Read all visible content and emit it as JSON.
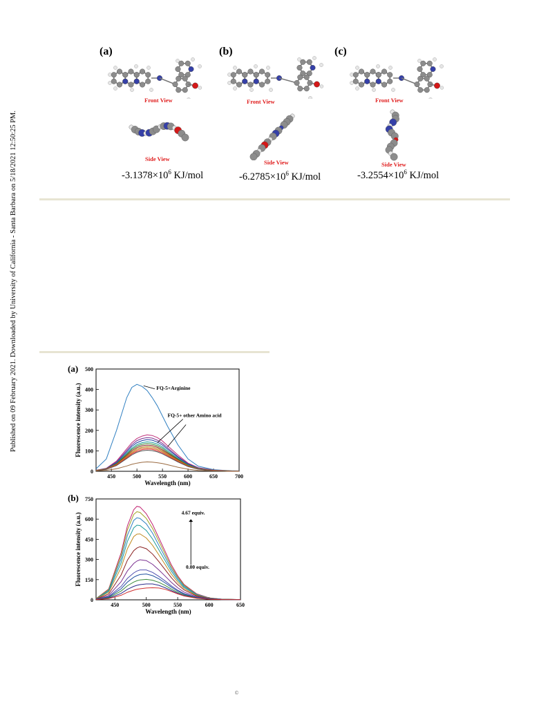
{
  "side_note": "Published on 09 February 2021. Downloaded by University of California - Santa Barbara on 5/18/2021 12:50:25 PM.",
  "figure_top": {
    "panels": [
      {
        "label": "(a)",
        "front": "Front View",
        "side": "Side View",
        "energy_prefix": "-3.1378×10",
        "energy_exp": "6",
        "energy_unit": " KJ/mol"
      },
      {
        "label": "(b)",
        "front": "Front View",
        "side": "Side View",
        "energy_prefix": "-6.2785×10",
        "energy_exp": "6",
        "energy_unit": " KJ/mol"
      },
      {
        "label": "(c)",
        "front": "Front View",
        "side": "Side View",
        "energy_prefix": "-3.2554×10",
        "energy_exp": "6",
        "energy_unit": " KJ/mol"
      }
    ]
  },
  "atom_colors": {
    "carbon": "#8c8c8c",
    "hydrogen": "#e6e6e6",
    "nitrogen": "#3540a8",
    "oxygen": "#d41818"
  },
  "footer_symbol": "©",
  "chart_data": [
    {
      "type": "line",
      "panel_label": "(a)",
      "xlabel": "Wavelength (nm)",
      "ylabel": "Fluorescence intensity (a.u.)",
      "xlim": [
        420,
        700
      ],
      "ylim": [
        0,
        500
      ],
      "xticks": [
        450,
        500,
        550,
        600,
        650,
        700
      ],
      "yticks": [
        0,
        100,
        200,
        300,
        400,
        500
      ],
      "annotations": [
        "FQ-5+Arginine",
        "FQ-5+ other Amino acid"
      ],
      "x": [
        420,
        440,
        460,
        480,
        490,
        500,
        510,
        520,
        530,
        540,
        550,
        560,
        580,
        600,
        620,
        650,
        680,
        700
      ],
      "series": [
        {
          "color": "#2f7fc1",
          "values": [
            12,
            60,
            200,
            360,
            410,
            425,
            415,
            395,
            360,
            320,
            270,
            220,
            130,
            60,
            25,
            8,
            3,
            2
          ]
        },
        {
          "color": "#c0307a",
          "values": [
            5,
            15,
            50,
            110,
            140,
            160,
            172,
            178,
            175,
            165,
            148,
            125,
            80,
            40,
            18,
            6,
            2,
            1
          ]
        },
        {
          "color": "#7a3090",
          "values": [
            5,
            14,
            46,
            102,
            130,
            150,
            160,
            165,
            162,
            152,
            136,
            115,
            73,
            37,
            16,
            5,
            2,
            1
          ]
        },
        {
          "color": "#1f3fa0",
          "values": [
            5,
            13,
            42,
            95,
            122,
            140,
            150,
            155,
            152,
            143,
            128,
            108,
            69,
            35,
            15,
            5,
            2,
            1
          ]
        },
        {
          "color": "#1a9a9a",
          "values": [
            4,
            12,
            39,
            88,
            113,
            130,
            140,
            144,
            141,
            133,
            119,
            100,
            64,
            32,
            14,
            5,
            2,
            1
          ]
        },
        {
          "color": "#3a8a3a",
          "values": [
            4,
            12,
            37,
            83,
            107,
            123,
            132,
            136,
            133,
            125,
            112,
            94,
            60,
            30,
            13,
            4,
            2,
            1
          ]
        },
        {
          "color": "#8a2020",
          "values": [
            4,
            11,
            35,
            78,
            101,
            116,
            125,
            128,
            126,
            118,
            105,
            89,
            57,
            28,
            12,
            4,
            2,
            1
          ]
        },
        {
          "color": "#b08a20",
          "values": [
            4,
            11,
            33,
            74,
            95,
            110,
            118,
            121,
            119,
            112,
            100,
            84,
            54,
            27,
            12,
            4,
            1,
            1
          ]
        },
        {
          "color": "#d06a20",
          "values": [
            4,
            10,
            31,
            70,
            90,
            104,
            112,
            115,
            113,
            106,
            95,
            80,
            51,
            25,
            11,
            4,
            1,
            1
          ]
        },
        {
          "color": "#e03030",
          "values": [
            3,
            10,
            30,
            66,
            85,
            98,
            106,
            109,
            107,
            100,
            90,
            76,
            48,
            24,
            11,
            4,
            1,
            1
          ]
        },
        {
          "color": "#555555",
          "values": [
            3,
            9,
            28,
            62,
            80,
            93,
            100,
            103,
            101,
            95,
            85,
            72,
            46,
            23,
            10,
            3,
            1,
            1
          ]
        },
        {
          "color": "#9a6a40",
          "values": [
            2,
            5,
            12,
            26,
            34,
            40,
            44,
            46,
            45,
            42,
            38,
            32,
            20,
            10,
            4,
            2,
            1,
            0
          ]
        }
      ]
    },
    {
      "type": "line",
      "panel_label": "(b)",
      "xlabel": "Wavelength (nm)",
      "ylabel": "Fluorescence intensity (a.u.)",
      "xlim": [
        420,
        650
      ],
      "ylim": [
        0,
        750
      ],
      "xticks": [
        450,
        500,
        550,
        600,
        650
      ],
      "yticks": [
        0,
        150,
        300,
        450,
        600,
        750
      ],
      "annotations": [
        "4.67 equiv.",
        "0.00 equiv."
      ],
      "x": [
        420,
        440,
        460,
        470,
        480,
        485,
        490,
        500,
        510,
        520,
        530,
        540,
        550,
        560,
        580,
        600,
        620,
        650
      ],
      "series": [
        {
          "color": "#c02070",
          "values": [
            10,
            80,
            350,
            550,
            670,
            695,
            690,
            640,
            560,
            460,
            360,
            260,
            180,
            115,
            45,
            15,
            5,
            2
          ]
        },
        {
          "color": "#a0a020",
          "values": [
            9,
            76,
            330,
            520,
            635,
            655,
            650,
            605,
            530,
            435,
            340,
            245,
            170,
            110,
            42,
            14,
            5,
            2
          ]
        },
        {
          "color": "#2f7fc1",
          "values": [
            8,
            70,
            305,
            480,
            590,
            610,
            605,
            565,
            495,
            405,
            318,
            230,
            160,
            102,
            40,
            13,
            5,
            2
          ]
        },
        {
          "color": "#1a9a9a",
          "values": [
            8,
            63,
            275,
            435,
            535,
            555,
            552,
            516,
            452,
            372,
            292,
            212,
            147,
            94,
            37,
            12,
            4,
            2
          ]
        },
        {
          "color": "#c08a20",
          "values": [
            7,
            55,
            240,
            380,
            470,
            488,
            490,
            460,
            405,
            334,
            262,
            190,
            132,
            85,
            33,
            11,
            4,
            2
          ]
        },
        {
          "color": "#8a2020",
          "values": [
            6,
            43,
            185,
            295,
            365,
            385,
            395,
            380,
            340,
            284,
            224,
            164,
            114,
            74,
            29,
            10,
            4,
            2
          ]
        },
        {
          "color": "#7a3090",
          "values": [
            5,
            32,
            135,
            215,
            270,
            288,
            298,
            292,
            264,
            222,
            176,
            130,
            90,
            58,
            23,
            8,
            3,
            1
          ]
        },
        {
          "color": "#5050b0",
          "values": [
            4,
            24,
            100,
            160,
            200,
            214,
            222,
            222,
            204,
            174,
            140,
            104,
            72,
            47,
            19,
            7,
            3,
            1
          ]
        },
        {
          "color": "#2050a0",
          "values": [
            4,
            20,
            82,
            132,
            168,
            180,
            188,
            192,
            180,
            156,
            126,
            94,
            66,
            43,
            17,
            6,
            2,
            1
          ]
        },
        {
          "color": "#3a8a3a",
          "values": [
            3,
            16,
            65,
            105,
            132,
            142,
            148,
            152,
            146,
            130,
            107,
            80,
            56,
            37,
            15,
            5,
            2,
            1
          ]
        },
        {
          "color": "#2a2a8a",
          "values": [
            3,
            12,
            48,
            78,
            100,
            108,
            113,
            118,
            118,
            108,
            90,
            69,
            49,
            32,
            13,
            5,
            2,
            1
          ]
        },
        {
          "color": "#d03030",
          "values": [
            2,
            9,
            34,
            56,
            72,
            78,
            82,
            88,
            90,
            88,
            78,
            62,
            44,
            29,
            12,
            4,
            2,
            1
          ]
        }
      ]
    }
  ]
}
